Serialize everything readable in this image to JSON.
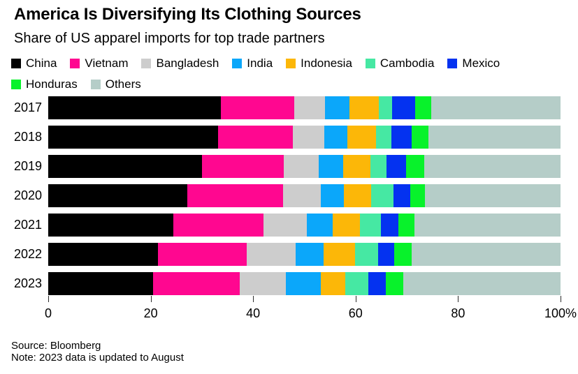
{
  "header": {
    "title": "America Is Diversifying Its Clothing Sources",
    "subtitle": "Share of US apparel imports for top trade partners"
  },
  "chart_data": {
    "type": "bar",
    "variant": "stacked-horizontal",
    "title": "America Is Diversifying Its Clothing Sources",
    "subtitle": "Share of US apparel imports for top trade partners",
    "categories": [
      "2017",
      "2018",
      "2019",
      "2020",
      "2021",
      "2022",
      "2023"
    ],
    "series": [
      {
        "name": "China",
        "color": "#000000",
        "values": [
          33.7,
          33.1,
          30.0,
          27.2,
          24.4,
          21.4,
          20.4
        ]
      },
      {
        "name": "Vietnam",
        "color": "#ff0790",
        "values": [
          14.3,
          14.6,
          16.0,
          18.7,
          17.6,
          17.4,
          17.0
        ]
      },
      {
        "name": "Bangladesh",
        "color": "#cdcdcd",
        "values": [
          6.0,
          6.2,
          6.8,
          7.3,
          8.5,
          9.5,
          9.0
        ]
      },
      {
        "name": "India",
        "color": "#0ba7fa",
        "values": [
          4.8,
          4.5,
          4.8,
          4.5,
          5.0,
          5.4,
          6.8
        ]
      },
      {
        "name": "Indonesia",
        "color": "#fcb708",
        "values": [
          5.7,
          5.6,
          5.3,
          5.3,
          5.4,
          6.2,
          4.8
        ]
      },
      {
        "name": "Cambodia",
        "color": "#46e8a3",
        "values": [
          2.6,
          3.0,
          3.2,
          4.4,
          4.0,
          4.5,
          4.5
        ]
      },
      {
        "name": "Mexico",
        "color": "#0432f0",
        "values": [
          4.5,
          4.0,
          3.8,
          3.3,
          3.5,
          3.1,
          3.4
        ]
      },
      {
        "name": "Honduras",
        "color": "#08f22b",
        "values": [
          3.2,
          3.2,
          3.5,
          2.8,
          3.1,
          3.4,
          3.4
        ]
      },
      {
        "name": "Others",
        "color": "#b5cdc8",
        "values": [
          25.2,
          25.8,
          26.6,
          26.5,
          28.5,
          29.1,
          30.7
        ]
      }
    ],
    "xlim": [
      0,
      100
    ],
    "x_ticks": [
      0,
      20,
      40,
      60,
      80,
      100
    ],
    "x_tick_labels": [
      "0",
      "20",
      "40",
      "60",
      "80",
      "100%"
    ],
    "legend_position": "top",
    "legend_row_break_after": 7,
    "grid": false
  },
  "footer": {
    "source": "Source: Bloomberg",
    "note": "Note: 2023 data is updated to August"
  }
}
